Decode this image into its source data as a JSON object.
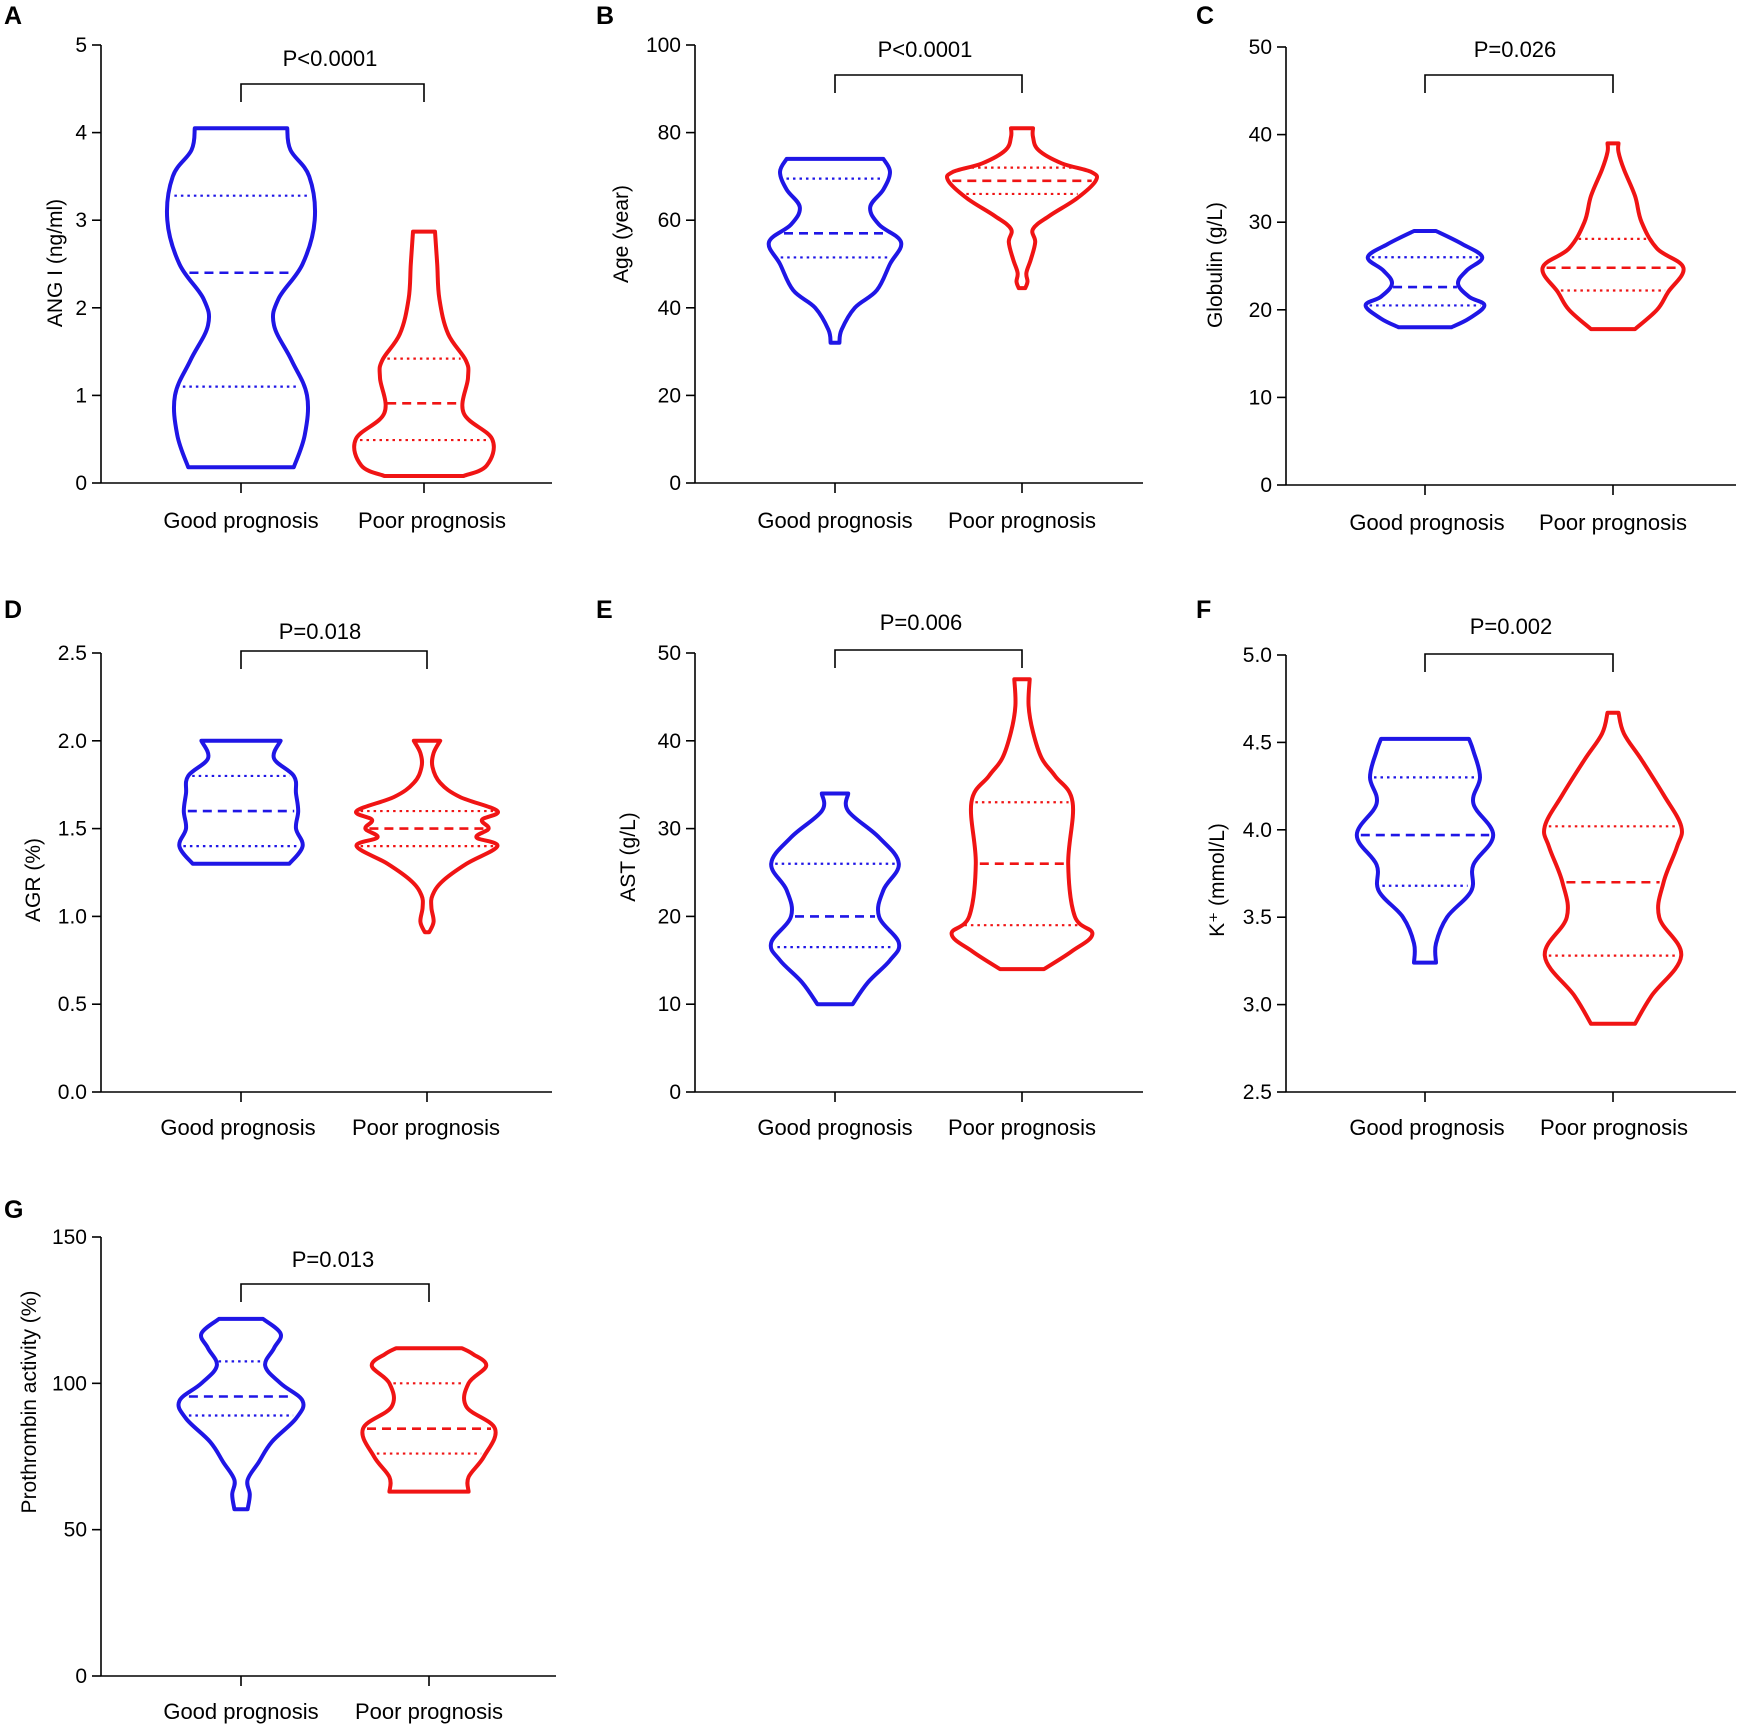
{
  "figure": {
    "group_colors": {
      "good": "#1f16e6",
      "poor": "#f01414"
    }
  },
  "chart_data": [
    {
      "id": "A",
      "type": "violin",
      "panel_letter": "A",
      "ylabel": "ANG I (ng/ml)",
      "ylim": [
        0,
        5
      ],
      "yticks": [
        0,
        1,
        2,
        3,
        4,
        5
      ],
      "ytick_labels": [
        "0",
        "1",
        "2",
        "3",
        "4",
        "5"
      ],
      "categories": [
        "Good prognosis",
        "Poor prognosis"
      ],
      "p_value": "P<0.0001",
      "groups": [
        {
          "name": "Good prognosis",
          "min": 0.18,
          "max": 4.05,
          "median": 2.4,
          "q1": 1.1,
          "q3": 3.28,
          "density": [
            [
              0.18,
              0.48
            ],
            [
              0.55,
              0.58
            ],
            [
              1.0,
              0.6
            ],
            [
              1.4,
              0.46
            ],
            [
              1.8,
              0.3
            ],
            [
              2.1,
              0.34
            ],
            [
              2.5,
              0.56
            ],
            [
              3.0,
              0.67
            ],
            [
              3.5,
              0.62
            ],
            [
              3.8,
              0.45
            ],
            [
              4.05,
              0.42
            ]
          ]
        },
        {
          "name": "Poor prognosis",
          "min": 0.08,
          "max": 2.87,
          "median": 0.91,
          "q1": 0.49,
          "q3": 1.42,
          "density": [
            [
              0.08,
              0.36
            ],
            [
              0.2,
              0.57
            ],
            [
              0.5,
              0.62
            ],
            [
              0.8,
              0.36
            ],
            [
              1.2,
              0.4
            ],
            [
              1.4,
              0.38
            ],
            [
              1.7,
              0.22
            ],
            [
              2.1,
              0.14
            ],
            [
              2.5,
              0.12
            ],
            [
              2.87,
              0.1
            ]
          ]
        }
      ]
    },
    {
      "id": "B",
      "type": "violin",
      "panel_letter": "B",
      "ylabel": "Age (year)",
      "ylim": [
        0,
        100
      ],
      "yticks": [
        0,
        20,
        40,
        60,
        80,
        100
      ],
      "ytick_labels": [
        "0",
        "20",
        "40",
        "60",
        "80",
        "100"
      ],
      "categories": [
        "Good prognosis",
        "Poor prognosis"
      ],
      "p_value": "P<0.0001",
      "groups": [
        {
          "name": "Good prognosis",
          "min": 32,
          "max": 74,
          "median": 57,
          "q1": 51.5,
          "q3": 69.5,
          "density": [
            [
              32,
              0.04
            ],
            [
              35,
              0.06
            ],
            [
              40,
              0.18
            ],
            [
              44,
              0.38
            ],
            [
              50,
              0.5
            ],
            [
              55,
              0.6
            ],
            [
              59,
              0.4
            ],
            [
              63,
              0.32
            ],
            [
              67,
              0.44
            ],
            [
              71,
              0.5
            ],
            [
              74,
              0.44
            ]
          ]
        },
        {
          "name": "Poor prognosis",
          "min": 44.5,
          "max": 81,
          "median": 69,
          "q1": 66,
          "q3": 72,
          "density": [
            [
              44.5,
              0.03
            ],
            [
              46,
              0.05
            ],
            [
              48,
              0.04
            ],
            [
              51,
              0.08
            ],
            [
              55,
              0.12
            ],
            [
              58,
              0.1
            ],
            [
              61,
              0.25
            ],
            [
              65,
              0.5
            ],
            [
              69,
              0.67
            ],
            [
              71,
              0.63
            ],
            [
              73,
              0.36
            ],
            [
              76,
              0.15
            ],
            [
              79,
              0.1
            ],
            [
              81,
              0.1
            ]
          ]
        }
      ]
    },
    {
      "id": "C",
      "type": "violin",
      "panel_letter": "C",
      "ylabel": "Globulin (g/L)",
      "ylim": [
        0,
        50
      ],
      "yticks": [
        0,
        10,
        20,
        30,
        40,
        50
      ],
      "ytick_labels": [
        "0",
        "10",
        "20",
        "30",
        "40",
        "50"
      ],
      "categories": [
        "Good prognosis",
        "Poor prognosis"
      ],
      "p_value": "P=0.026",
      "groups": [
        {
          "name": "Good prognosis",
          "min": 18,
          "max": 29,
          "median": 22.6,
          "q1": 20.5,
          "q3": 26,
          "density": [
            [
              18,
              0.24
            ],
            [
              19,
              0.4
            ],
            [
              20.5,
              0.54
            ],
            [
              21.5,
              0.4
            ],
            [
              23,
              0.3
            ],
            [
              24.5,
              0.38
            ],
            [
              26,
              0.52
            ],
            [
              27.5,
              0.34
            ],
            [
              29,
              0.1
            ]
          ]
        },
        {
          "name": "Poor prognosis",
          "min": 17.8,
          "max": 39,
          "median": 24.8,
          "q1": 22.2,
          "q3": 28.1,
          "density": [
            [
              17.8,
              0.2
            ],
            [
              20,
              0.4
            ],
            [
              22,
              0.5
            ],
            [
              24.8,
              0.64
            ],
            [
              27,
              0.4
            ],
            [
              30,
              0.26
            ],
            [
              33,
              0.2
            ],
            [
              36,
              0.1
            ],
            [
              38,
              0.05
            ],
            [
              39,
              0.05
            ]
          ]
        }
      ]
    },
    {
      "id": "D",
      "type": "violin",
      "panel_letter": "D",
      "ylabel": "AGR (%)",
      "ylim": [
        0,
        2.5
      ],
      "yticks": [
        0,
        0.5,
        1,
        1.5,
        2,
        2.5
      ],
      "ytick_labels": [
        "0.0",
        "0.5",
        "1.0",
        "1.5",
        "2.0",
        "2.5"
      ],
      "categories": [
        "Good prognosis",
        "Poor prognosis"
      ],
      "p_value": "P=0.018",
      "groups": [
        {
          "name": "Good prognosis",
          "min": 1.3,
          "max": 2.0,
          "median": 1.6,
          "q1": 1.4,
          "q3": 1.8,
          "density": [
            [
              1.3,
              0.44
            ],
            [
              1.4,
              0.56
            ],
            [
              1.5,
              0.5
            ],
            [
              1.6,
              0.52
            ],
            [
              1.7,
              0.5
            ],
            [
              1.8,
              0.48
            ],
            [
              1.9,
              0.3
            ],
            [
              2.0,
              0.36
            ]
          ]
        },
        {
          "name": "Poor prognosis",
          "min": 0.91,
          "max": 2.0,
          "median": 1.5,
          "q1": 1.4,
          "q3": 1.6,
          "density": [
            [
              0.91,
              0.02
            ],
            [
              0.97,
              0.06
            ],
            [
              1.05,
              0.04
            ],
            [
              1.12,
              0.05
            ],
            [
              1.2,
              0.14
            ],
            [
              1.3,
              0.36
            ],
            [
              1.4,
              0.64
            ],
            [
              1.45,
              0.45
            ],
            [
              1.5,
              0.56
            ],
            [
              1.55,
              0.5
            ],
            [
              1.6,
              0.64
            ],
            [
              1.68,
              0.3
            ],
            [
              1.76,
              0.12
            ],
            [
              1.85,
              0.05
            ],
            [
              1.93,
              0.06
            ],
            [
              2.0,
              0.12
            ]
          ]
        }
      ]
    },
    {
      "id": "E",
      "type": "violin",
      "panel_letter": "E",
      "ylabel": "AST (g/L)",
      "ylim": [
        0,
        50
      ],
      "yticks": [
        0,
        10,
        20,
        30,
        40,
        50
      ],
      "ytick_labels": [
        "0",
        "10",
        "20",
        "30",
        "40",
        "50"
      ],
      "categories": [
        "Good prognosis",
        "Poor prognosis"
      ],
      "p_value": "P=0.006",
      "groups": [
        {
          "name": "Good prognosis",
          "min": 10,
          "max": 34,
          "median": 20,
          "q1": 16.5,
          "q3": 26,
          "density": [
            [
              10,
              0.16
            ],
            [
              12.5,
              0.3
            ],
            [
              15,
              0.5
            ],
            [
              17,
              0.58
            ],
            [
              20,
              0.4
            ],
            [
              23,
              0.44
            ],
            [
              26,
              0.58
            ],
            [
              29,
              0.4
            ],
            [
              32,
              0.12
            ],
            [
              34,
              0.12
            ]
          ]
        },
        {
          "name": "Poor prognosis",
          "min": 14,
          "max": 47,
          "median": 26,
          "q1": 19,
          "q3": 33,
          "density": [
            [
              14,
              0.2
            ],
            [
              16,
              0.45
            ],
            [
              18,
              0.64
            ],
            [
              20,
              0.48
            ],
            [
              26,
              0.42
            ],
            [
              33,
              0.46
            ],
            [
              36,
              0.3
            ],
            [
              38,
              0.18
            ],
            [
              41,
              0.1
            ],
            [
              44,
              0.06
            ],
            [
              47,
              0.07
            ]
          ]
        }
      ]
    },
    {
      "id": "F",
      "type": "violin",
      "panel_letter": "F",
      "ylabel": "K⁺ (mmol/L)",
      "ylim": [
        2.5,
        5.0
      ],
      "yticks": [
        2.5,
        3.0,
        3.5,
        4.0,
        4.5,
        5.0
      ],
      "ytick_labels": [
        "2.5",
        "3.0",
        "3.5",
        "4.0",
        "4.5",
        "5.0"
      ],
      "categories": [
        "Good prognosis",
        "Poor prognosis"
      ],
      "p_value": "P=0.002",
      "groups": [
        {
          "name": "Good prognosis",
          "min": 3.24,
          "max": 4.52,
          "median": 3.97,
          "q1": 3.68,
          "q3": 4.3,
          "density": [
            [
              3.24,
              0.1
            ],
            [
              3.35,
              0.1
            ],
            [
              3.5,
              0.2
            ],
            [
              3.65,
              0.42
            ],
            [
              3.8,
              0.44
            ],
            [
              3.97,
              0.62
            ],
            [
              4.15,
              0.44
            ],
            [
              4.3,
              0.5
            ],
            [
              4.45,
              0.44
            ],
            [
              4.52,
              0.4
            ]
          ]
        },
        {
          "name": "Poor prognosis",
          "min": 2.89,
          "max": 4.67,
          "median": 3.7,
          "q1": 3.28,
          "q3": 4.02,
          "density": [
            [
              2.89,
              0.2
            ],
            [
              3.05,
              0.35
            ],
            [
              3.28,
              0.62
            ],
            [
              3.5,
              0.42
            ],
            [
              3.7,
              0.46
            ],
            [
              3.9,
              0.58
            ],
            [
              4.02,
              0.62
            ],
            [
              4.2,
              0.46
            ],
            [
              4.4,
              0.26
            ],
            [
              4.55,
              0.1
            ],
            [
              4.67,
              0.05
            ]
          ]
        }
      ]
    },
    {
      "id": "G",
      "type": "violin",
      "panel_letter": "G",
      "ylabel": "Prothrombin activity (%)",
      "ylim": [
        0,
        150
      ],
      "yticks": [
        0,
        50,
        100,
        150
      ],
      "ytick_labels": [
        "0",
        "50",
        "100",
        "150"
      ],
      "categories": [
        "Good prognosis",
        "Poor prognosis"
      ],
      "p_value": "P=0.013",
      "groups": [
        {
          "name": "Good prognosis",
          "min": 57,
          "max": 122,
          "median": 95.5,
          "q1": 89,
          "q3": 107.5,
          "density": [
            [
              57,
              0.06
            ],
            [
              62,
              0.08
            ],
            [
              67,
              0.06
            ],
            [
              73,
              0.16
            ],
            [
              80,
              0.28
            ],
            [
              88,
              0.5
            ],
            [
              94,
              0.56
            ],
            [
              100,
              0.36
            ],
            [
              106,
              0.22
            ],
            [
              112,
              0.3
            ],
            [
              117,
              0.36
            ],
            [
              122,
              0.2
            ]
          ]
        },
        {
          "name": "Poor prognosis",
          "min": 63,
          "max": 112,
          "median": 84.5,
          "q1": 76,
          "q3": 100,
          "density": [
            [
              63,
              0.36
            ],
            [
              68,
              0.36
            ],
            [
              75,
              0.5
            ],
            [
              84.5,
              0.6
            ],
            [
              92,
              0.34
            ],
            [
              100,
              0.36
            ],
            [
              106,
              0.52
            ],
            [
              110,
              0.4
            ],
            [
              112,
              0.3
            ]
          ]
        }
      ]
    }
  ]
}
